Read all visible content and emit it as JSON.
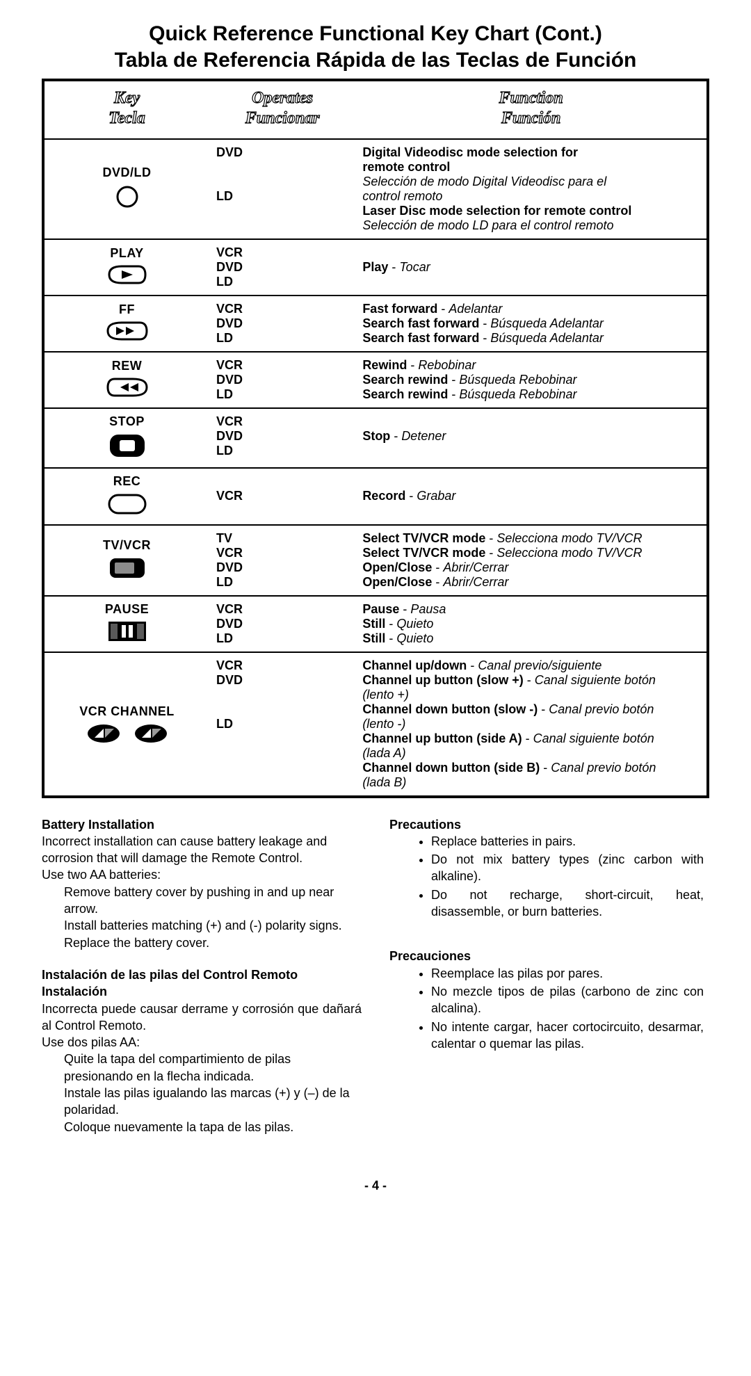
{
  "title_en": "Quick Reference Functional Key Chart  (Cont.)",
  "title_es": "Tabla de Referencia Rápida de las Teclas de Función",
  "head": {
    "key_en": "Key",
    "key_es": "Tecla",
    "op_en": "Operates",
    "op_es": "Funcionar",
    "fn_en": "Function",
    "fn_es": "Función"
  },
  "rows": [
    {
      "key": "DVD/LD",
      "icon": "circle-outline",
      "ops": [
        "DVD",
        "",
        "",
        "LD"
      ],
      "fns": [
        [
          [
            "b",
            "Digital Videodisc mode selection for"
          ]
        ],
        [
          [
            "b",
            "remote control"
          ]
        ],
        [
          [
            "i",
            "Selección de modo Digital Videodisc para el"
          ]
        ],
        [
          [
            "i",
            "control remoto"
          ]
        ],
        [
          [
            "b",
            "Laser Disc mode selection for remote control"
          ]
        ],
        [
          [
            "i",
            "Selección de modo LD para el control remoto"
          ]
        ]
      ]
    },
    {
      "key": "PLAY",
      "icon": "play-cassette",
      "ops": [
        "VCR",
        "DVD",
        "LD"
      ],
      "fns": [
        [
          [
            "",
            ""
          ]
        ],
        [
          [
            "b",
            "Play"
          ],
          [
            "",
            " - "
          ],
          [
            "i",
            "Tocar"
          ]
        ],
        [
          [
            "",
            ""
          ]
        ]
      ]
    },
    {
      "key": "FF",
      "icon": "ff-cassette",
      "ops": [
        "VCR",
        "DVD",
        "LD"
      ],
      "fns": [
        [
          [
            "b",
            "Fast forward"
          ],
          [
            "",
            " - "
          ],
          [
            "i",
            "Adelantar"
          ]
        ],
        [
          [
            "b",
            "Search fast forward"
          ],
          [
            "",
            " - "
          ],
          [
            "i",
            "Búsqueda Adelantar"
          ]
        ],
        [
          [
            "b",
            "Search fast forward"
          ],
          [
            "",
            " - "
          ],
          [
            "i",
            "Búsqueda Adelantar"
          ]
        ]
      ]
    },
    {
      "key": "REW",
      "icon": "rew-cassette",
      "ops": [
        "VCR",
        "DVD",
        "LD"
      ],
      "fns": [
        [
          [
            "b",
            "Rewind"
          ],
          [
            "",
            " - "
          ],
          [
            "i",
            "Rebobinar"
          ]
        ],
        [
          [
            "b",
            "Search rewind"
          ],
          [
            "",
            " - "
          ],
          [
            "i",
            "Búsqueda Rebobinar"
          ]
        ],
        [
          [
            "b",
            "Search rewind"
          ],
          [
            "",
            " - "
          ],
          [
            "i",
            "Búsqueda Rebobinar"
          ]
        ]
      ]
    },
    {
      "key": "STOP",
      "icon": "stop-block",
      "ops": [
        "VCR",
        "DVD",
        "LD"
      ],
      "fns": [
        [
          [
            "",
            ""
          ]
        ],
        [
          [
            "b",
            "Stop"
          ],
          [
            "",
            " - "
          ],
          [
            "i",
            "Detener"
          ]
        ],
        [
          [
            "",
            ""
          ]
        ]
      ]
    },
    {
      "key": "REC",
      "icon": "rec-rect",
      "ops": [
        "",
        "VCR",
        ""
      ],
      "fns": [
        [
          [
            "",
            ""
          ]
        ],
        [
          [
            "b",
            "Record"
          ],
          [
            "",
            " - "
          ],
          [
            "i",
            "Grabar"
          ]
        ],
        [
          [
            "",
            ""
          ]
        ]
      ]
    },
    {
      "key": "TV/VCR",
      "icon": "display-block",
      "ops": [
        "TV",
        "VCR",
        "DVD",
        "LD"
      ],
      "fns": [
        [
          [
            "b",
            "Select TV/VCR mode"
          ],
          [
            "",
            " - "
          ],
          [
            "i",
            "Selecciona modo TV/VCR"
          ]
        ],
        [
          [
            "b",
            "Select TV/VCR mode"
          ],
          [
            "",
            " - "
          ],
          [
            "i",
            "Selecciona modo TV/VCR"
          ]
        ],
        [
          [
            "b",
            "Open/Close"
          ],
          [
            "",
            " - "
          ],
          [
            "i",
            "Abrir/Cerrar"
          ]
        ],
        [
          [
            "b",
            "Open/Close"
          ],
          [
            "",
            " - "
          ],
          [
            "i",
            "Abrir/Cerrar"
          ]
        ]
      ]
    },
    {
      "key": "PAUSE",
      "icon": "pause-block",
      "ops": [
        "VCR",
        "DVD",
        "LD"
      ],
      "fns": [
        [
          [
            "b",
            "Pause"
          ],
          [
            "",
            " - "
          ],
          [
            "i",
            "Pausa"
          ]
        ],
        [
          [
            "b",
            "Still"
          ],
          [
            "",
            " - "
          ],
          [
            "i",
            "Quieto"
          ]
        ],
        [
          [
            "b",
            "Still"
          ],
          [
            "",
            " - "
          ],
          [
            "i",
            "Quieto"
          ]
        ]
      ]
    },
    {
      "key": "VCR CHANNEL",
      "icon": "channel-pair",
      "ops": [
        "VCR",
        "DVD",
        "",
        "",
        "LD"
      ],
      "fns": [
        [
          [
            "b",
            "Channel up/down"
          ],
          [
            "",
            " - "
          ],
          [
            "i",
            "Canal previo/siguiente"
          ]
        ],
        [
          [
            "b",
            "Channel up button (slow +)"
          ],
          [
            "",
            " - "
          ],
          [
            "i",
            "Canal siguiente botón"
          ]
        ],
        [
          [
            "i",
            "(lento +)"
          ]
        ],
        [
          [
            "b",
            "Channel down button (slow -)"
          ],
          [
            "",
            " - "
          ],
          [
            "i",
            "Canal previo botón"
          ]
        ],
        [
          [
            "i",
            "(lento -)"
          ]
        ],
        [
          [
            "b",
            "Channel up button (side A)"
          ],
          [
            "",
            " - "
          ],
          [
            "i",
            "Canal siguiente botón"
          ]
        ],
        [
          [
            "i",
            "(lada A)"
          ]
        ],
        [
          [
            "b",
            "Channel down button (side B)"
          ],
          [
            "",
            " - "
          ],
          [
            "i",
            "Canal previo botón"
          ]
        ],
        [
          [
            "i",
            "(lada B)"
          ]
        ]
      ]
    }
  ],
  "battery_en": {
    "title": "Battery Installation",
    "p1": "Incorrect installation can cause battery leakage and corrosion that will damage the Remote Control.",
    "p2": "Use two AA batteries:",
    "steps": [
      "Remove battery cover by pushing in and up near arrow.",
      "Install batteries matching (+) and (-) polarity signs.",
      "Replace the battery cover."
    ]
  },
  "battery_es": {
    "title1": "Instalación de las pilas del Control Remoto",
    "title2": "Instalación",
    "p1": "Incorrecta puede causar derrame y corrosión que dañará al Control Remoto.",
    "p2": "Use dos pilas AA:",
    "steps": [
      "Quite la tapa del compartimiento de pilas presionando en la flecha indicada.",
      "Instale las pilas igualando las marcas (+) y (–) de la polaridad.",
      "Coloque nuevamente la tapa de las pilas."
    ]
  },
  "prec_en": {
    "title": "Precautions",
    "items": [
      "Replace batteries in pairs.",
      "Do not mix battery types (zinc carbon with alkaline).",
      "Do not recharge, short-circuit, heat, disassemble, or burn batteries."
    ]
  },
  "prec_es": {
    "title": "Precauciones",
    "items": [
      "Reemplace las pilas por pares.",
      "No mezcle tipos de pilas (carbono de zinc con alcalina).",
      "No intente cargar, hacer cortocircuito, desarmar, calentar o quemar las pilas."
    ]
  },
  "page": "- 4 -"
}
